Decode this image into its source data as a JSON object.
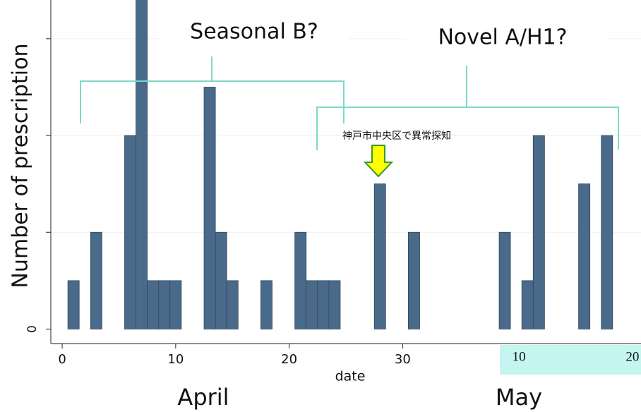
{
  "chart_data": {
    "type": "bar",
    "ylabel": "Number of prescription",
    "xlabel": "date",
    "x": [
      1,
      3,
      6,
      7,
      8,
      9,
      10,
      13,
      14,
      15,
      18,
      21,
      22,
      23,
      24,
      28,
      31,
      39,
      41,
      42,
      46,
      48
    ],
    "values": [
      1,
      2,
      4,
      7,
      1,
      1,
      1,
      5,
      2,
      1,
      1,
      2,
      1,
      1,
      1,
      3,
      2,
      2,
      1,
      4,
      3,
      4
    ],
    "color": "#4a6a8a",
    "xlim": [
      -1,
      51
    ],
    "xticks": [
      0,
      10,
      20,
      30
    ],
    "may_ticks": [
      {
        "value": 40,
        "label": "10"
      },
      {
        "value": 50,
        "label": "20"
      }
    ],
    "ylim": [
      -0.3,
      6.8
    ],
    "yticks": [
      0,
      2,
      4,
      6
    ],
    "grid": true,
    "annotations": {
      "seasonal": "Seasonal B?",
      "novel": "Novel A/H1?",
      "detection": "神戸市中央区で異常探知",
      "april": "April",
      "may": "May"
    }
  }
}
